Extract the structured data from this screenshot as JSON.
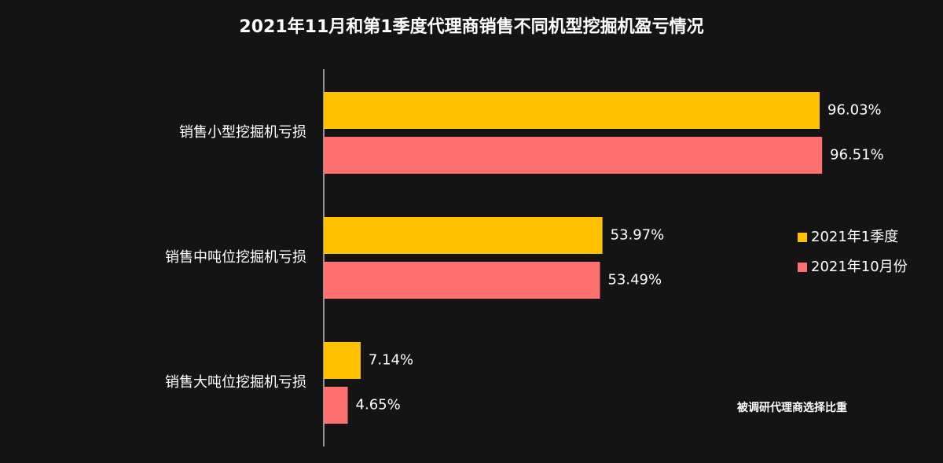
{
  "chart_data": {
    "type": "hbar",
    "title": "2021年11月和第1季度代理商销售不同机型挖掘机盈亏情况",
    "annotation": "被调研代理商选择比重",
    "categories": [
      "销售小型挖掘机亏损",
      "销售中吨位挖掘机亏损",
      "销售大吨位挖掘机亏损"
    ],
    "series": [
      {
        "name": "2021年1季度",
        "color": "#ffc000",
        "values": [
          96.03,
          53.97,
          7.14
        ],
        "value_labels": [
          "96.03%",
          "53.97%",
          "7.14%"
        ]
      },
      {
        "name": "2021年10月份",
        "color": "#ff7070",
        "values": [
          96.51,
          53.49,
          4.65
        ],
        "value_labels": [
          "96.51%",
          "53.49%",
          "4.65%"
        ]
      }
    ],
    "legend": "right"
  }
}
